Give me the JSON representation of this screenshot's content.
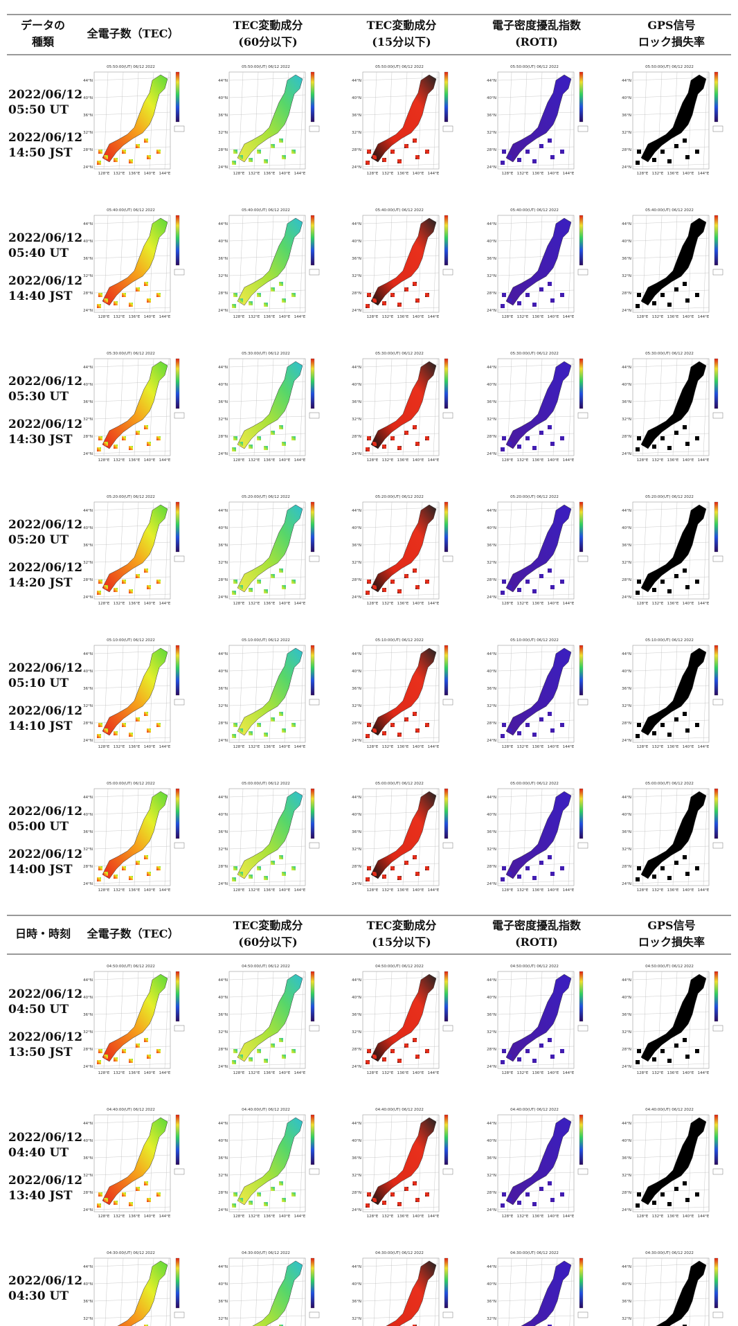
{
  "header_top": [
    [
      "データの",
      "種類"
    ],
    [
      "全電子数（TEC）"
    ],
    [
      "TEC変動成分",
      "(60分以下)"
    ],
    [
      "TEC変動成分",
      "(15分以下)"
    ],
    [
      "電子密度擾乱指数",
      "(ROTI)"
    ],
    [
      "GPS信号",
      "ロック損失率"
    ]
  ],
  "header_bottom": [
    [
      "日時・時刻"
    ],
    [
      "全電子数（TEC）"
    ],
    [
      "TEC変動成分",
      "(60分以下)"
    ],
    [
      "TEC変動成分",
      "(15分以下)"
    ],
    [
      "電子密度擾乱指数",
      "(ROTI)"
    ],
    [
      "GPS信号",
      "ロック損失率"
    ]
  ],
  "rows": [
    {
      "ut": [
        "2022/06/12",
        "05:50 UT"
      ],
      "jst": [
        "2022/06/12",
        "14:50 JST"
      ],
      "map_title": "05:50:00(UT) 06/12 2022"
    },
    {
      "ut": [
        "2022/06/12",
        "05:40 UT"
      ],
      "jst": [
        "2022/06/12",
        "14:40 JST"
      ],
      "map_title": "05:40:00(UT) 06/12 2022"
    },
    {
      "ut": [
        "2022/06/12",
        "05:30 UT"
      ],
      "jst": [
        "2022/06/12",
        "14:30 JST"
      ],
      "map_title": "05:30:00(UT) 06/12 2022"
    },
    {
      "ut": [
        "2022/06/12",
        "05:20 UT"
      ],
      "jst": [
        "2022/06/12",
        "14:20 JST"
      ],
      "map_title": "05:20:00(UT) 06/12 2022"
    },
    {
      "ut": [
        "2022/06/12",
        "05:10 UT"
      ],
      "jst": [
        "2022/06/12",
        "14:10 JST"
      ],
      "map_title": "05:10:00(UT) 06/12 2022"
    },
    {
      "ut": [
        "2022/06/12",
        "05:00 UT"
      ],
      "jst": [
        "2022/06/12",
        "14:00 JST"
      ],
      "map_title": "05:00:00(UT) 06/12 2022"
    },
    {
      "ut": [
        "2022/06/12",
        "04:50 UT"
      ],
      "jst": [
        "2022/06/12",
        "13:50 JST"
      ],
      "map_title": "04:50:00(UT) 06/12 2022"
    },
    {
      "ut": [
        "2022/06/12",
        "04:40 UT"
      ],
      "jst": [
        "2022/06/12",
        "13:40 JST"
      ],
      "map_title": "04:40:00(UT) 06/12 2022"
    },
    {
      "ut": [
        "2022/06/12",
        "04:30 UT"
      ],
      "map_title": "04:30:00(UT) 06/12 2022"
    }
  ],
  "map_lat_labels": [
    "44°N",
    "40°N",
    "36°N",
    "32°N",
    "28°N",
    "24°N"
  ],
  "map_lon_labels": [
    "128°E",
    "132°E",
    "136°E",
    "140°E",
    "144°E"
  ]
}
